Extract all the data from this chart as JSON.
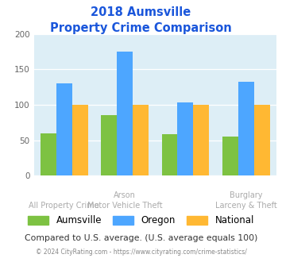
{
  "title_line1": "2018 Aumsville",
  "title_line2": "Property Crime Comparison",
  "aumsville": [
    60,
    85,
    58,
    55
  ],
  "oregon": [
    130,
    175,
    103,
    132
  ],
  "national": [
    100,
    100,
    100,
    100
  ],
  "color_aumsville": "#7dc242",
  "color_oregon": "#4da6ff",
  "color_national": "#ffb833",
  "ylim": [
    0,
    200
  ],
  "yticks": [
    0,
    50,
    100,
    150,
    200
  ],
  "plot_bg": "#ddeef6",
  "title_color": "#1a56db",
  "top_labels": [
    "",
    "Arson",
    "",
    "Burglary"
  ],
  "bot_labels": [
    "All Property Crime",
    "Motor Vehicle Theft",
    "",
    "Larceny & Theft"
  ],
  "label_color": "#aaaaaa",
  "subtitle_note": "Compared to U.S. average. (U.S. average equals 100)",
  "subtitle_note_color": "#333333",
  "footer": "© 2024 CityRating.com - https://www.cityrating.com/crime-statistics/",
  "footer_color": "#888888",
  "footer_link_color": "#4da6ff"
}
